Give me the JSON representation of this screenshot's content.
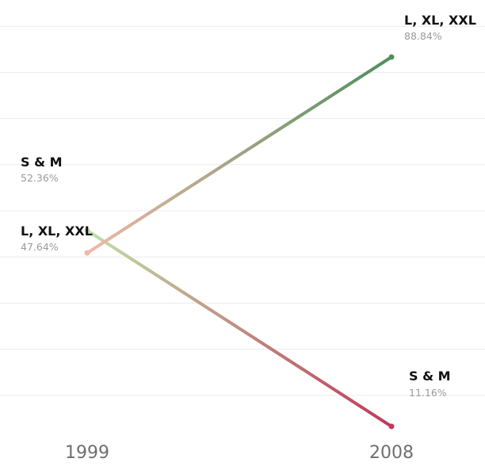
{
  "chart_data": {
    "type": "line",
    "title": "",
    "xlabel": "",
    "ylabel": "",
    "x": [
      "1999",
      "2008"
    ],
    "ylim": [
      0,
      100
    ],
    "grid": true,
    "series": [
      {
        "name": "S & M",
        "values": [
          52.36,
          11.16
        ],
        "value_labels": [
          "52.36%",
          "11.16%"
        ],
        "colors": [
          "#bfe0a8",
          "#c0395a"
        ]
      },
      {
        "name": "L, XL, XXL",
        "values": [
          47.64,
          88.84
        ],
        "value_labels": [
          "47.64%",
          "88.84%"
        ],
        "colors": [
          "#f0b8a8",
          "#4e8f5c"
        ]
      }
    ]
  }
}
